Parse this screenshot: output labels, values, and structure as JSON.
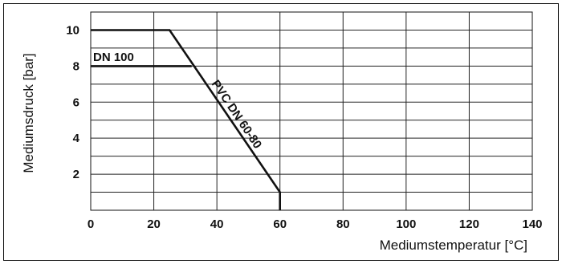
{
  "chart_data": {
    "type": "line",
    "title": "",
    "xlabel": "Mediumstemperatur [°C]",
    "ylabel": "Mediumsdruck [bar]",
    "xlim": [
      0,
      140
    ],
    "ylim": [
      0,
      11
    ],
    "x_ticks": [
      "0",
      "20",
      "40",
      "60",
      "80",
      "100",
      "120",
      "140"
    ],
    "y_ticks": [
      "2",
      "4",
      "6",
      "8",
      "10"
    ],
    "grid": true,
    "legend": "none",
    "series": [
      {
        "name": "PVC DN 60-80",
        "x": [
          0,
          25,
          60,
          60
        ],
        "y": [
          10,
          10,
          1,
          0
        ]
      },
      {
        "name": "DN 100",
        "x": [
          0,
          32
        ],
        "y": [
          8,
          8
        ]
      }
    ],
    "annotations": [
      "DN 100",
      "PVC DN 60-80"
    ]
  }
}
